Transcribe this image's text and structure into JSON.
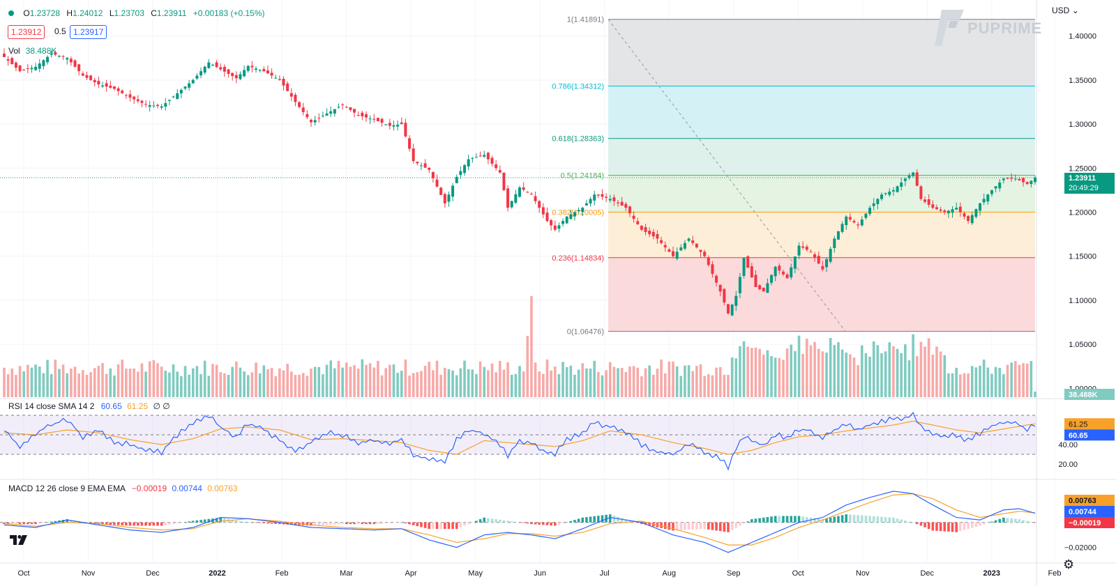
{
  "header": {
    "ohlc": [
      {
        "label": "O",
        "value": "1.23728"
      },
      {
        "label": "H",
        "value": "1.24012"
      },
      {
        "label": "L",
        "value": "1.23703"
      },
      {
        "label": "C",
        "value": "1.23911"
      }
    ],
    "change": "+0.00183 (+0.15%)",
    "bid": "1.23912",
    "spread": "0.5",
    "ask": "1.23917",
    "vol_label": "Vol",
    "vol_value": "38.488K",
    "currency": "USD",
    "brand": "PUPRIME"
  },
  "rsi_header": {
    "label": "RSI 14 close SMA 14 2",
    "rsi": "60.65",
    "sma": "61.25",
    "extra": "∅ ∅"
  },
  "macd_header": {
    "label": "MACD 12 26 close 9 EMA EMA",
    "hist": "−0.00019",
    "macd": "0.00744",
    "signal": "0.00763"
  },
  "colors": {
    "up": "#089981",
    "down": "#f23645",
    "vol_up": "#7fcbc0",
    "vol_down": "#f7a9a7",
    "rsi": "#2962ff",
    "rsi_ma": "#f7a12a",
    "macd": "#2962ff",
    "signal": "#f7a12a"
  },
  "chart_data": [
    {
      "type": "candlestick",
      "pair_price_axis": [
        "1.40000",
        "1.35000",
        "1.30000",
        "1.25000",
        "1.20000",
        "1.15000",
        "1.10000",
        "1.05000",
        "1.00000"
      ],
      "ylim": [
        0.99,
        1.425
      ],
      "x_labels": [
        "Oct",
        "Nov",
        "Dec",
        "2022",
        "Feb",
        "Mar",
        "Apr",
        "May",
        "Jun",
        "Jul",
        "Aug",
        "Sep",
        "Oct",
        "Nov",
        "Dec",
        "2023",
        "Feb"
      ],
      "last_price": "1.23911",
      "countdown": "20:49:29",
      "volume_last": "38.488K",
      "close_series": [
        [
          0,
          1.376
        ],
        [
          4,
          1.36
        ],
        [
          8,
          1.365
        ],
        [
          12,
          1.38
        ],
        [
          16,
          1.375
        ],
        [
          20,
          1.355
        ],
        [
          24,
          1.345
        ],
        [
          28,
          1.34
        ],
        [
          32,
          1.33
        ],
        [
          36,
          1.322
        ],
        [
          40,
          1.32
        ],
        [
          44,
          1.335
        ],
        [
          48,
          1.35
        ],
        [
          52,
          1.37
        ],
        [
          55,
          1.362
        ],
        [
          59,
          1.352
        ],
        [
          62,
          1.366
        ],
        [
          66,
          1.36
        ],
        [
          70,
          1.35
        ],
        [
          74,
          1.325
        ],
        [
          78,
          1.302
        ],
        [
          82,
          1.312
        ],
        [
          86,
          1.322
        ],
        [
          90,
          1.31
        ],
        [
          94,
          1.305
        ],
        [
          98,
          1.298
        ],
        [
          101,
          1.3
        ],
        [
          104,
          1.258
        ],
        [
          108,
          1.248
        ],
        [
          112,
          1.21
        ],
        [
          115,
          1.24
        ],
        [
          118,
          1.26
        ],
        [
          122,
          1.265
        ],
        [
          126,
          1.245
        ],
        [
          128,
          1.205
        ],
        [
          131,
          1.228
        ],
        [
          134,
          1.22
        ],
        [
          138,
          1.19
        ],
        [
          140,
          1.18
        ],
        [
          143,
          1.195
        ],
        [
          147,
          1.205
        ],
        [
          150,
          1.22
        ],
        [
          154,
          1.215
        ],
        [
          158,
          1.205
        ],
        [
          162,
          1.18
        ],
        [
          166,
          1.17
        ],
        [
          170,
          1.15
        ],
        [
          174,
          1.17
        ],
        [
          178,
          1.15
        ],
        [
          182,
          1.11
        ],
        [
          184,
          1.085
        ],
        [
          186,
          1.105
        ],
        [
          188,
          1.148
        ],
        [
          191,
          1.115
        ],
        [
          193,
          1.11
        ],
        [
          196,
          1.138
        ],
        [
          199,
          1.125
        ],
        [
          202,
          1.162
        ],
        [
          205,
          1.155
        ],
        [
          208,
          1.135
        ],
        [
          211,
          1.17
        ],
        [
          214,
          1.195
        ],
        [
          217,
          1.185
        ],
        [
          220,
          1.205
        ],
        [
          223,
          1.22
        ],
        [
          226,
          1.225
        ],
        [
          229,
          1.238
        ],
        [
          231,
          1.245
        ],
        [
          233,
          1.215
        ],
        [
          236,
          1.205
        ],
        [
          239,
          1.2
        ],
        [
          242,
          1.205
        ],
        [
          245,
          1.19
        ],
        [
          248,
          1.21
        ],
        [
          251,
          1.225
        ],
        [
          254,
          1.238
        ],
        [
          257,
          1.238
        ],
        [
          260,
          1.232
        ],
        [
          262,
          1.239
        ]
      ],
      "fibonacci": [
        {
          "level": "1",
          "price": "1.41891",
          "value": 1.41891
        },
        {
          "level": "0.786",
          "price": "1.34312",
          "value": 1.34312
        },
        {
          "level": "0.618",
          "price": "1.28363",
          "value": 1.28363
        },
        {
          "level": "0.5",
          "price": "1.24184",
          "value": 1.24184
        },
        {
          "level": "0.382",
          "price": "1.20005",
          "value": 1.20005
        },
        {
          "level": "0.236",
          "price": "1.14834",
          "value": 1.14834
        },
        {
          "level": "0",
          "price": "1.06476",
          "value": 1.06476
        }
      ]
    },
    {
      "type": "line",
      "name": "RSI 14",
      "axis_labels": [
        "40.00",
        "20.00"
      ],
      "ylim": [
        10,
        80
      ],
      "bands": [
        70,
        50,
        30
      ],
      "rsi_last": "60.65",
      "sma_last": "61.25",
      "rsi_series": [
        [
          0,
          55
        ],
        [
          4,
          38
        ],
        [
          8,
          52
        ],
        [
          12,
          60
        ],
        [
          16,
          66
        ],
        [
          20,
          48
        ],
        [
          24,
          55
        ],
        [
          28,
          43
        ],
        [
          32,
          40
        ],
        [
          36,
          35
        ],
        [
          40,
          32
        ],
        [
          44,
          50
        ],
        [
          48,
          62
        ],
        [
          52,
          70
        ],
        [
          55,
          58
        ],
        [
          59,
          48
        ],
        [
          62,
          62
        ],
        [
          66,
          55
        ],
        [
          70,
          44
        ],
        [
          74,
          34
        ],
        [
          78,
          42
        ],
        [
          82,
          52
        ],
        [
          86,
          50
        ],
        [
          90,
          40
        ],
        [
          94,
          45
        ],
        [
          98,
          40
        ],
        [
          101,
          46
        ],
        [
          104,
          30
        ],
        [
          108,
          25
        ],
        [
          112,
          22
        ],
        [
          115,
          46
        ],
        [
          118,
          55
        ],
        [
          122,
          52
        ],
        [
          126,
          40
        ],
        [
          128,
          28
        ],
        [
          131,
          44
        ],
        [
          134,
          42
        ],
        [
          138,
          32
        ],
        [
          140,
          30
        ],
        [
          143,
          45
        ],
        [
          147,
          52
        ],
        [
          150,
          62
        ],
        [
          154,
          58
        ],
        [
          158,
          52
        ],
        [
          162,
          40
        ],
        [
          166,
          32
        ],
        [
          170,
          30
        ],
        [
          174,
          40
        ],
        [
          178,
          33
        ],
        [
          182,
          26
        ],
        [
          184,
          16
        ],
        [
          186,
          35
        ],
        [
          188,
          48
        ],
        [
          191,
          42
        ],
        [
          193,
          40
        ],
        [
          196,
          50
        ],
        [
          199,
          47
        ],
        [
          202,
          56
        ],
        [
          205,
          54
        ],
        [
          208,
          46
        ],
        [
          211,
          55
        ],
        [
          214,
          60
        ],
        [
          217,
          56
        ],
        [
          220,
          60
        ],
        [
          223,
          64
        ],
        [
          226,
          66
        ],
        [
          229,
          68
        ],
        [
          231,
          72
        ],
        [
          233,
          58
        ],
        [
          236,
          50
        ],
        [
          239,
          48
        ],
        [
          242,
          50
        ],
        [
          245,
          44
        ],
        [
          248,
          52
        ],
        [
          251,
          58
        ],
        [
          254,
          64
        ],
        [
          257,
          62
        ],
        [
          260,
          56
        ],
        [
          262,
          60.65
        ]
      ],
      "sma_series": [
        [
          0,
          52
        ],
        [
          8,
          50
        ],
        [
          16,
          55
        ],
        [
          24,
          52
        ],
        [
          32,
          45
        ],
        [
          40,
          40
        ],
        [
          48,
          46
        ],
        [
          55,
          56
        ],
        [
          62,
          58
        ],
        [
          70,
          55
        ],
        [
          78,
          45
        ],
        [
          86,
          46
        ],
        [
          94,
          44
        ],
        [
          101,
          42
        ],
        [
          108,
          34
        ],
        [
          115,
          30
        ],
        [
          122,
          44
        ],
        [
          128,
          42
        ],
        [
          134,
          40
        ],
        [
          140,
          38
        ],
        [
          147,
          44
        ],
        [
          154,
          54
        ],
        [
          162,
          50
        ],
        [
          170,
          42
        ],
        [
          178,
          36
        ],
        [
          184,
          30
        ],
        [
          190,
          34
        ],
        [
          196,
          42
        ],
        [
          202,
          48
        ],
        [
          208,
          50
        ],
        [
          214,
          54
        ],
        [
          220,
          57
        ],
        [
          226,
          60
        ],
        [
          231,
          64
        ],
        [
          236,
          60
        ],
        [
          242,
          55
        ],
        [
          248,
          52
        ],
        [
          254,
          56
        ],
        [
          260,
          60
        ],
        [
          262,
          61.25
        ]
      ]
    },
    {
      "type": "line",
      "name": "MACD 12 26 close 9 EMA EMA",
      "axis_labels": [
        "−0.02000"
      ],
      "ylim": [
        -0.028,
        0.03
      ],
      "macd_last": "0.00744",
      "signal_last": "0.00763",
      "hist_last": "−0.00019",
      "macd_series": [
        [
          0,
          -0.002
        ],
        [
          8,
          -0.004
        ],
        [
          16,
          0.002
        ],
        [
          24,
          -0.002
        ],
        [
          32,
          -0.006
        ],
        [
          40,
          -0.008
        ],
        [
          48,
          -0.004
        ],
        [
          55,
          0.004
        ],
        [
          62,
          0.003
        ],
        [
          70,
          0.0
        ],
        [
          78,
          -0.004
        ],
        [
          86,
          -0.005
        ],
        [
          94,
          -0.006
        ],
        [
          101,
          -0.005
        ],
        [
          108,
          -0.014
        ],
        [
          115,
          -0.02
        ],
        [
          122,
          -0.01
        ],
        [
          128,
          -0.008
        ],
        [
          134,
          -0.01
        ],
        [
          140,
          -0.013
        ],
        [
          147,
          -0.005
        ],
        [
          154,
          0.004
        ],
        [
          162,
          0.0
        ],
        [
          170,
          -0.01
        ],
        [
          178,
          -0.016
        ],
        [
          184,
          -0.024
        ],
        [
          190,
          -0.016
        ],
        [
          196,
          -0.008
        ],
        [
          202,
          0.0
        ],
        [
          208,
          0.004
        ],
        [
          214,
          0.014
        ],
        [
          220,
          0.02
        ],
        [
          226,
          0.025
        ],
        [
          231,
          0.023
        ],
        [
          236,
          0.014
        ],
        [
          242,
          0.004
        ],
        [
          248,
          0.002
        ],
        [
          254,
          0.01
        ],
        [
          258,
          0.011
        ],
        [
          262,
          0.00744
        ]
      ],
      "signal_series": [
        [
          0,
          -0.001
        ],
        [
          8,
          -0.003
        ],
        [
          16,
          0.0
        ],
        [
          24,
          -0.001
        ],
        [
          32,
          -0.004
        ],
        [
          40,
          -0.006
        ],
        [
          48,
          -0.005
        ],
        [
          55,
          0.001
        ],
        [
          62,
          0.003
        ],
        [
          70,
          0.001
        ],
        [
          78,
          -0.002
        ],
        [
          86,
          -0.004
        ],
        [
          94,
          -0.005
        ],
        [
          101,
          -0.005
        ],
        [
          108,
          -0.01
        ],
        [
          115,
          -0.016
        ],
        [
          122,
          -0.013
        ],
        [
          128,
          -0.009
        ],
        [
          134,
          -0.009
        ],
        [
          140,
          -0.011
        ],
        [
          147,
          -0.008
        ],
        [
          154,
          -0.001
        ],
        [
          162,
          0.001
        ],
        [
          170,
          -0.005
        ],
        [
          178,
          -0.012
        ],
        [
          184,
          -0.018
        ],
        [
          190,
          -0.018
        ],
        [
          196,
          -0.012
        ],
        [
          202,
          -0.004
        ],
        [
          208,
          0.002
        ],
        [
          214,
          0.009
        ],
        [
          220,
          0.016
        ],
        [
          226,
          0.022
        ],
        [
          231,
          0.023
        ],
        [
          236,
          0.019
        ],
        [
          242,
          0.01
        ],
        [
          248,
          0.004
        ],
        [
          254,
          0.007
        ],
        [
          258,
          0.009
        ],
        [
          262,
          0.00763
        ]
      ]
    }
  ]
}
